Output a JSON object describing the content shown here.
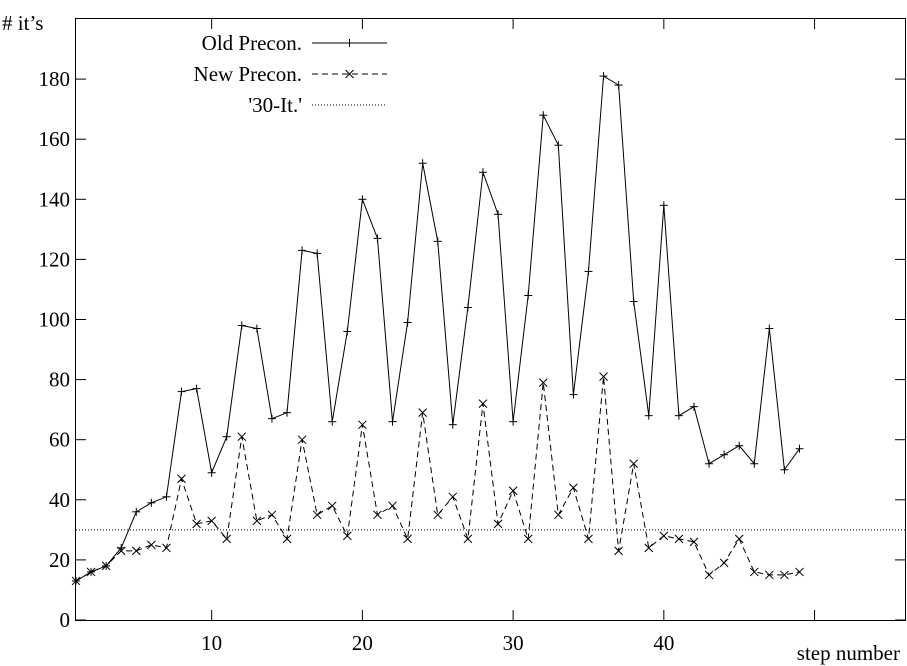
{
  "chart_data": {
    "type": "line",
    "ylabel": "# it’s",
    "xlabel": "step number",
    "xlim": [
      1,
      56
    ],
    "ylim": [
      0,
      200
    ],
    "x_ticks": [
      10,
      20,
      30,
      40
    ],
    "y_ticks": [
      0,
      20,
      40,
      60,
      80,
      100,
      120,
      140,
      160,
      180
    ],
    "grid": false,
    "legend": "top-left",
    "series": [
      {
        "name": "Old Precon.",
        "style": "solid",
        "marker": "plus",
        "x": [
          1,
          2,
          3,
          4,
          5,
          6,
          7,
          8,
          9,
          10,
          11,
          12,
          13,
          14,
          15,
          16,
          17,
          18,
          19,
          20,
          21,
          22,
          23,
          24,
          25,
          26,
          27,
          28,
          29,
          30,
          31,
          32,
          33,
          34,
          35,
          36,
          37,
          38,
          39,
          40,
          41,
          42,
          43,
          44,
          45,
          46,
          47,
          48,
          49
        ],
        "values": [
          13,
          16,
          18,
          24,
          36,
          39,
          41,
          76,
          77,
          49,
          61,
          98,
          97,
          67,
          69,
          123,
          122,
          66,
          96,
          140,
          127,
          66,
          99,
          152,
          126,
          65,
          104,
          149,
          135,
          66,
          108,
          168,
          158,
          75,
          116,
          181,
          178,
          106,
          68,
          138,
          68,
          71,
          52,
          55,
          58,
          52,
          97,
          50,
          57
        ]
      },
      {
        "name": "New Precon.",
        "style": "dashed",
        "marker": "cross",
        "x": [
          1,
          2,
          3,
          4,
          5,
          6,
          7,
          8,
          9,
          10,
          11,
          12,
          13,
          14,
          15,
          16,
          17,
          18,
          19,
          20,
          21,
          22,
          23,
          24,
          25,
          26,
          27,
          28,
          29,
          30,
          31,
          32,
          33,
          34,
          35,
          36,
          37,
          38,
          39,
          40,
          41,
          42,
          43,
          44,
          45,
          46,
          47,
          48,
          49
        ],
        "values": [
          13,
          16,
          18,
          23,
          23,
          25,
          24,
          47,
          32,
          33,
          27,
          61,
          33,
          35,
          27,
          60,
          35,
          38,
          28,
          65,
          35,
          38,
          27,
          69,
          35,
          41,
          27,
          72,
          32,
          43,
          27,
          79,
          35,
          44,
          27,
          81,
          23,
          52,
          24,
          28,
          27,
          26,
          15,
          19,
          27,
          16,
          15,
          15,
          16
        ]
      },
      {
        "name": "'30-It.'",
        "style": "dotted",
        "marker": "none",
        "x": [
          1,
          56
        ],
        "values": [
          30,
          30
        ]
      }
    ]
  }
}
